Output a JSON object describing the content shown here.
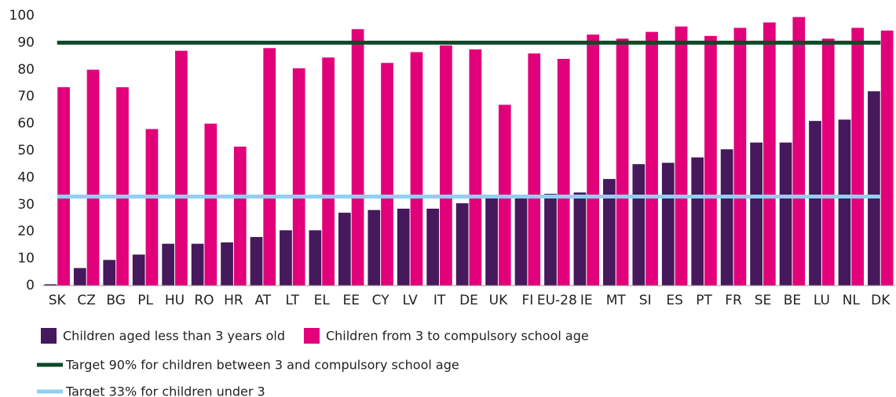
{
  "chart_data": {
    "type": "bar",
    "categories": [
      "SK",
      "CZ",
      "BG",
      "PL",
      "HU",
      "RO",
      "HR",
      "AT",
      "LT",
      "EL",
      "EE",
      "CY",
      "LV",
      "IT",
      "DE",
      "UK",
      "FI",
      "EU-28",
      "IE",
      "MT",
      "SI",
      "ES",
      "PT",
      "FR",
      "SE",
      "BE",
      "LU",
      "NL",
      "DK"
    ],
    "series": [
      {
        "name": "Children aged less than 3 years old",
        "color": "#46185c",
        "values": [
          0.5,
          6.5,
          9.5,
          11.5,
          15.5,
          15.5,
          16,
          18,
          20.5,
          20.5,
          27,
          28,
          28.5,
          28.5,
          30.5,
          33.5,
          33,
          34,
          34.5,
          39.5,
          45,
          45.5,
          47.5,
          50.5,
          53,
          53,
          61,
          61.5,
          72
        ]
      },
      {
        "name": "Children from 3 to compulsory school age",
        "color": "#e2007a",
        "values": [
          73.5,
          80,
          73.5,
          58,
          87,
          60,
          51.5,
          88,
          80.5,
          84.5,
          95,
          82.5,
          86.5,
          89,
          87.5,
          67,
          86,
          84,
          93,
          91.5,
          94,
          96,
          92.5,
          95.5,
          97.5,
          99.5,
          91.5,
          95.5,
          94.5
        ]
      }
    ],
    "targets": [
      {
        "name": "Target 90% for children between 3 and compulsory school age",
        "color": "#0b4a26",
        "value": 90
      },
      {
        "name": "Target 33% for children under 3",
        "color": "#8fd0f0",
        "value": 33
      }
    ],
    "ylim": [
      0,
      100
    ],
    "yticks": [
      0,
      10,
      20,
      30,
      40,
      50,
      60,
      70,
      80,
      90,
      100
    ],
    "grid": false
  }
}
